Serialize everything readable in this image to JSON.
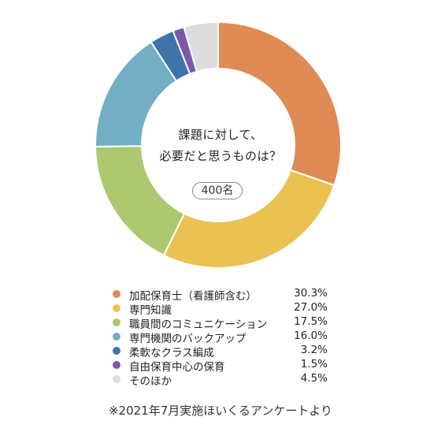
{
  "center": {
    "question_line1": "課題に対して、",
    "question_line2": "必要だと思うものは？",
    "count": "400名"
  },
  "footnote": "※2021年7月実施ほいくるアンケートより",
  "chart_data": {
    "type": "pie",
    "donut": true,
    "categories": [
      "加配保育士（看護師含む）",
      "専門知識",
      "職員間のコミュニケーション",
      "専門機関のバックアップ",
      "柔軟なクラス編成",
      "自由保育中心の保育",
      "そのほか"
    ],
    "values": [
      30.3,
      27.0,
      17.5,
      16.0,
      3.2,
      1.5,
      4.5
    ],
    "value_labels": [
      "30.3%",
      "27.0%",
      "17.5%",
      "16.0%",
      "3.2%",
      "1.5%",
      "4.5%"
    ],
    "colors": [
      "#e08b55",
      "#eac252",
      "#aec86f",
      "#74aec4",
      "#3e74ab",
      "#7d58a8",
      "#dcdcdc"
    ],
    "legend_position": "bottom"
  }
}
